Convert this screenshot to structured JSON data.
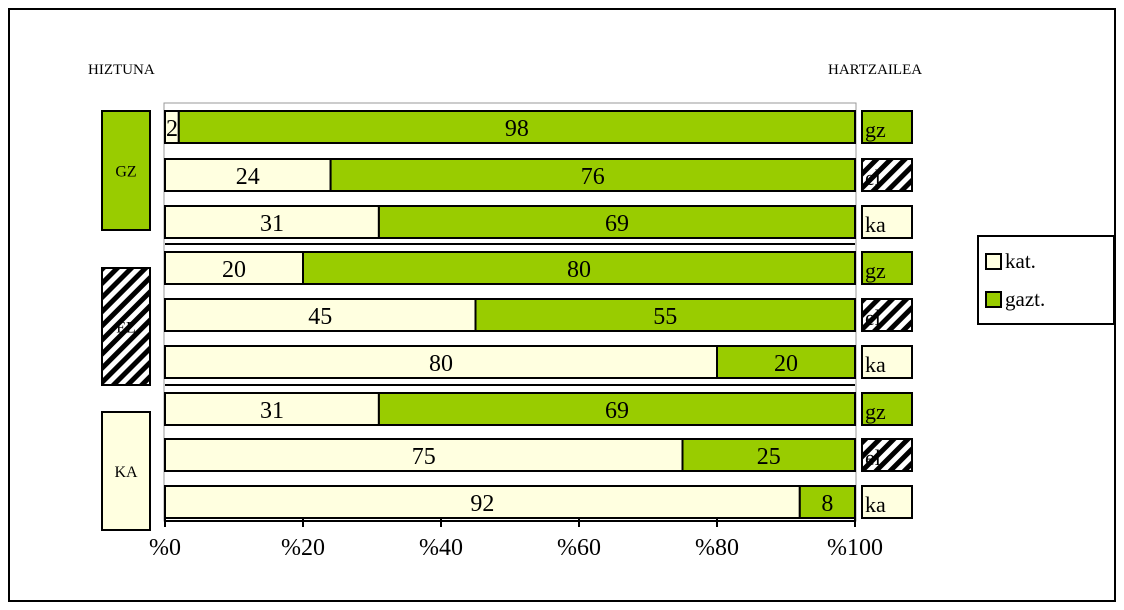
{
  "chart_data": {
    "type": "bar",
    "orientation": "horizontal",
    "stacked": true,
    "speaker_header": "HIZTUNA",
    "receiver_header": "HARTZAILEA",
    "groups": [
      {
        "label": "GZ",
        "pattern": "green"
      },
      {
        "label": "EL",
        "pattern": "hatch"
      },
      {
        "label": "KA",
        "pattern": "cream"
      }
    ],
    "receivers": [
      {
        "label": "gz",
        "pattern": "green"
      },
      {
        "label": "el",
        "pattern": "hatch"
      },
      {
        "label": "ka",
        "pattern": "cream"
      }
    ],
    "series": [
      {
        "name": "kat.",
        "color": "#FFFFE0",
        "values": [
          2,
          24,
          31,
          20,
          45,
          80,
          31,
          75,
          92
        ]
      },
      {
        "name": "gazt.",
        "color": "#99CC00",
        "values": [
          98,
          76,
          69,
          80,
          55,
          20,
          69,
          25,
          8
        ]
      }
    ],
    "xticks": [
      "%0",
      "%20",
      "%40",
      "%60",
      "%80",
      "%100"
    ],
    "xlim": [
      0,
      100
    ],
    "legend_position": "right"
  },
  "colors": {
    "kat": "#FFFFE0",
    "gazt": "#99CC00",
    "border": "#000000"
  }
}
